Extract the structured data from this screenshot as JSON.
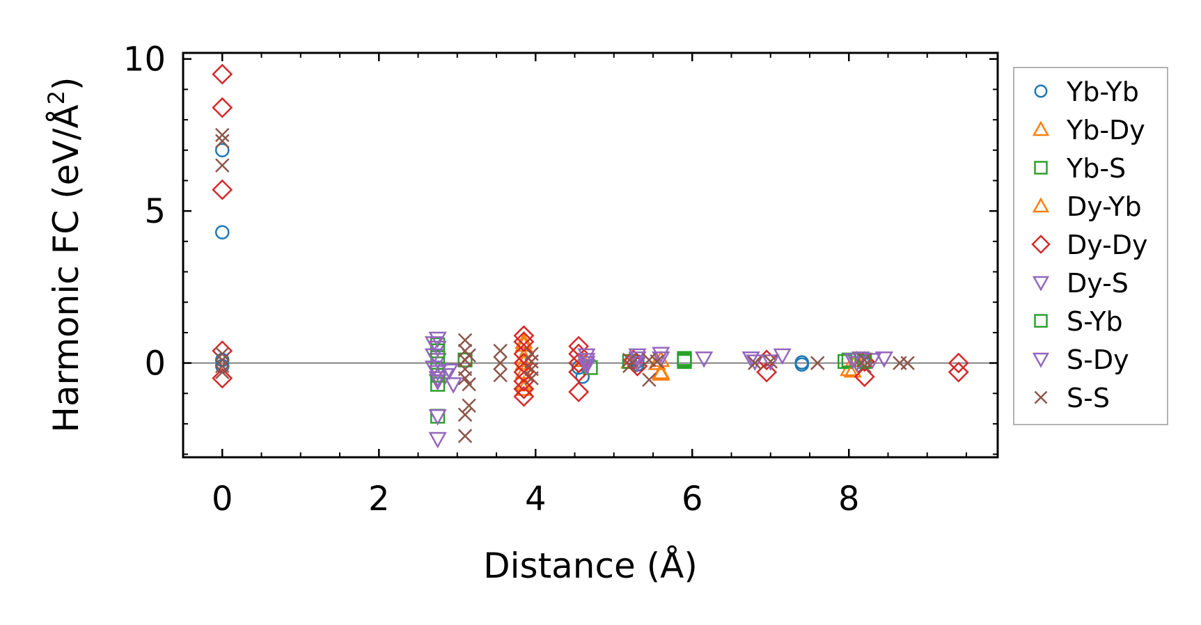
{
  "chart_data": {
    "type": "scatter",
    "title": "",
    "xlabel": "Distance (Å)",
    "ylabel_main": "Harmonic FC (eV/Å",
    "ylabel_sup": "2",
    "ylabel_close": ")",
    "xlim": [
      -0.5,
      9.9
    ],
    "ylim": [
      -3.1,
      10.2
    ],
    "xticks": [
      0,
      2,
      4,
      6,
      8
    ],
    "xtick_labels": [
      "0",
      "2",
      "4",
      "6",
      "8"
    ],
    "yticks": [
      0,
      5,
      10
    ],
    "ytick_labels": [
      "0",
      "5",
      "10"
    ],
    "zero_line": true,
    "grid": false,
    "legend_position": "outside-right",
    "series": [
      {
        "name": "Yb-Yb",
        "marker": "circle",
        "color": "#1f77b4",
        "points": [
          [
            0,
            7.0
          ],
          [
            0,
            4.3
          ],
          [
            0,
            0.1
          ],
          [
            0,
            -0.1
          ],
          [
            4.55,
            -0.15
          ],
          [
            4.6,
            -0.45
          ],
          [
            5.3,
            0.05
          ],
          [
            5.3,
            -0.05
          ],
          [
            7.4,
            0.02
          ],
          [
            7.4,
            -0.05
          ],
          [
            8.2,
            0.02
          ]
        ]
      },
      {
        "name": "Yb-Dy",
        "marker": "triangle-up",
        "color": "#ff7f0e",
        "points": [
          [
            3.85,
            0.7
          ],
          [
            3.85,
            0.2
          ],
          [
            3.85,
            -0.3
          ],
          [
            3.85,
            -0.85
          ],
          [
            4.6,
            0.1
          ],
          [
            5.2,
            0.05
          ],
          [
            5.6,
            -0.3
          ],
          [
            5.6,
            0.1
          ],
          [
            8.0,
            -0.2
          ],
          [
            8.1,
            0.1
          ]
        ]
      },
      {
        "name": "Yb-S",
        "marker": "square",
        "color": "#2ca02c",
        "points": [
          [
            2.75,
            0.6
          ],
          [
            2.75,
            0.2
          ],
          [
            2.75,
            -0.2
          ],
          [
            2.75,
            -0.7
          ],
          [
            2.75,
            -1.75
          ],
          [
            3.1,
            0.1
          ],
          [
            4.7,
            -0.15
          ],
          [
            5.2,
            0.05
          ],
          [
            5.9,
            0.05
          ],
          [
            5.9,
            0.15
          ],
          [
            7.95,
            0.05
          ],
          [
            8.2,
            0.1
          ]
        ]
      },
      {
        "name": "Dy-Yb",
        "marker": "triangle-up",
        "color": "#ff7f0e",
        "points": [
          [
            3.85,
            0.6
          ],
          [
            3.85,
            0.0
          ],
          [
            3.85,
            -0.7
          ],
          [
            5.55,
            0.0
          ],
          [
            5.6,
            -0.35
          ],
          [
            8.05,
            -0.25
          ]
        ]
      },
      {
        "name": "Dy-Dy",
        "marker": "diamond",
        "color": "#d62728",
        "points": [
          [
            0,
            9.5
          ],
          [
            0,
            8.4
          ],
          [
            0,
            5.7
          ],
          [
            0,
            0.4
          ],
          [
            0,
            -0.5
          ],
          [
            3.85,
            0.9
          ],
          [
            3.85,
            0.7
          ],
          [
            3.85,
            0.3
          ],
          [
            3.85,
            0.0
          ],
          [
            3.85,
            -0.3
          ],
          [
            3.85,
            -0.6
          ],
          [
            3.85,
            -0.85
          ],
          [
            3.85,
            -1.1
          ],
          [
            4.55,
            0.55
          ],
          [
            4.55,
            0.3
          ],
          [
            4.55,
            0.0
          ],
          [
            4.55,
            -0.3
          ],
          [
            4.55,
            -0.95
          ],
          [
            5.25,
            0.1
          ],
          [
            5.3,
            -0.1
          ],
          [
            6.95,
            0.1
          ],
          [
            6.95,
            -0.3
          ],
          [
            8.2,
            0.05
          ],
          [
            8.2,
            -0.45
          ],
          [
            9.4,
            0.0
          ],
          [
            9.4,
            -0.3
          ]
        ]
      },
      {
        "name": "Dy-S",
        "marker": "triangle-down",
        "color": "#9467bd",
        "points": [
          [
            2.75,
            0.8
          ],
          [
            2.75,
            0.5
          ],
          [
            2.75,
            0.1
          ],
          [
            2.75,
            -0.3
          ],
          [
            2.75,
            -0.6
          ],
          [
            2.75,
            -2.5
          ],
          [
            2.85,
            -0.4
          ],
          [
            4.65,
            0.25
          ],
          [
            4.65,
            0.0
          ],
          [
            5.3,
            0.25
          ],
          [
            5.3,
            0.0
          ],
          [
            5.6,
            0.3
          ],
          [
            6.15,
            0.15
          ],
          [
            6.75,
            0.15
          ],
          [
            7.15,
            0.25
          ],
          [
            8.15,
            0.15
          ],
          [
            8.45,
            0.15
          ]
        ]
      },
      {
        "name": "S-Yb",
        "marker": "square",
        "color": "#2ca02c",
        "points": [
          [
            2.75,
            0.4
          ],
          [
            2.75,
            -0.4
          ],
          [
            5.9,
            0.1
          ],
          [
            8.0,
            0.1
          ],
          [
            8.2,
            0.05
          ]
        ]
      },
      {
        "name": "S-Dy",
        "marker": "triangle-down",
        "color": "#9467bd",
        "points": [
          [
            2.7,
            0.65
          ],
          [
            2.7,
            0.25
          ],
          [
            2.7,
            -0.15
          ],
          [
            2.75,
            -0.5
          ],
          [
            2.75,
            -1.75
          ],
          [
            2.9,
            -0.25
          ],
          [
            2.95,
            -0.7
          ],
          [
            4.65,
            0.1
          ],
          [
            4.65,
            -0.1
          ],
          [
            5.3,
            0.15
          ],
          [
            5.6,
            0.15
          ],
          [
            6.8,
            0.05
          ],
          [
            7.0,
            0.05
          ],
          [
            8.05,
            0.1
          ],
          [
            8.1,
            0.0
          ],
          [
            8.3,
            0.1
          ]
        ]
      },
      {
        "name": "S-S",
        "marker": "x",
        "color": "#8c564b",
        "points": [
          [
            0,
            7.5
          ],
          [
            0,
            7.3
          ],
          [
            0,
            6.5
          ],
          [
            0,
            0.3
          ],
          [
            0,
            0.1
          ],
          [
            0,
            -0.1
          ],
          [
            0,
            -0.3
          ],
          [
            3.1,
            0.75
          ],
          [
            3.1,
            0.4
          ],
          [
            3.1,
            0.1
          ],
          [
            3.1,
            -0.2
          ],
          [
            3.1,
            -0.5
          ],
          [
            3.1,
            -1.7
          ],
          [
            3.1,
            -2.4
          ],
          [
            3.15,
            -0.7
          ],
          [
            3.15,
            -1.4
          ],
          [
            3.15,
            0.25
          ],
          [
            3.55,
            0.4
          ],
          [
            3.55,
            0.0
          ],
          [
            3.55,
            -0.4
          ],
          [
            3.95,
            0.3
          ],
          [
            3.95,
            0.05
          ],
          [
            3.95,
            -0.2
          ],
          [
            3.95,
            -0.5
          ],
          [
            5.2,
            0.1
          ],
          [
            5.2,
            -0.1
          ],
          [
            5.45,
            -0.55
          ],
          [
            5.45,
            0.1
          ],
          [
            5.55,
            0.05
          ],
          [
            6.8,
            0.0
          ],
          [
            7.0,
            0.05
          ],
          [
            7.6,
            0.0
          ],
          [
            8.2,
            0.1
          ],
          [
            8.2,
            -0.1
          ],
          [
            8.65,
            0.0
          ],
          [
            8.75,
            0.0
          ]
        ]
      }
    ]
  }
}
